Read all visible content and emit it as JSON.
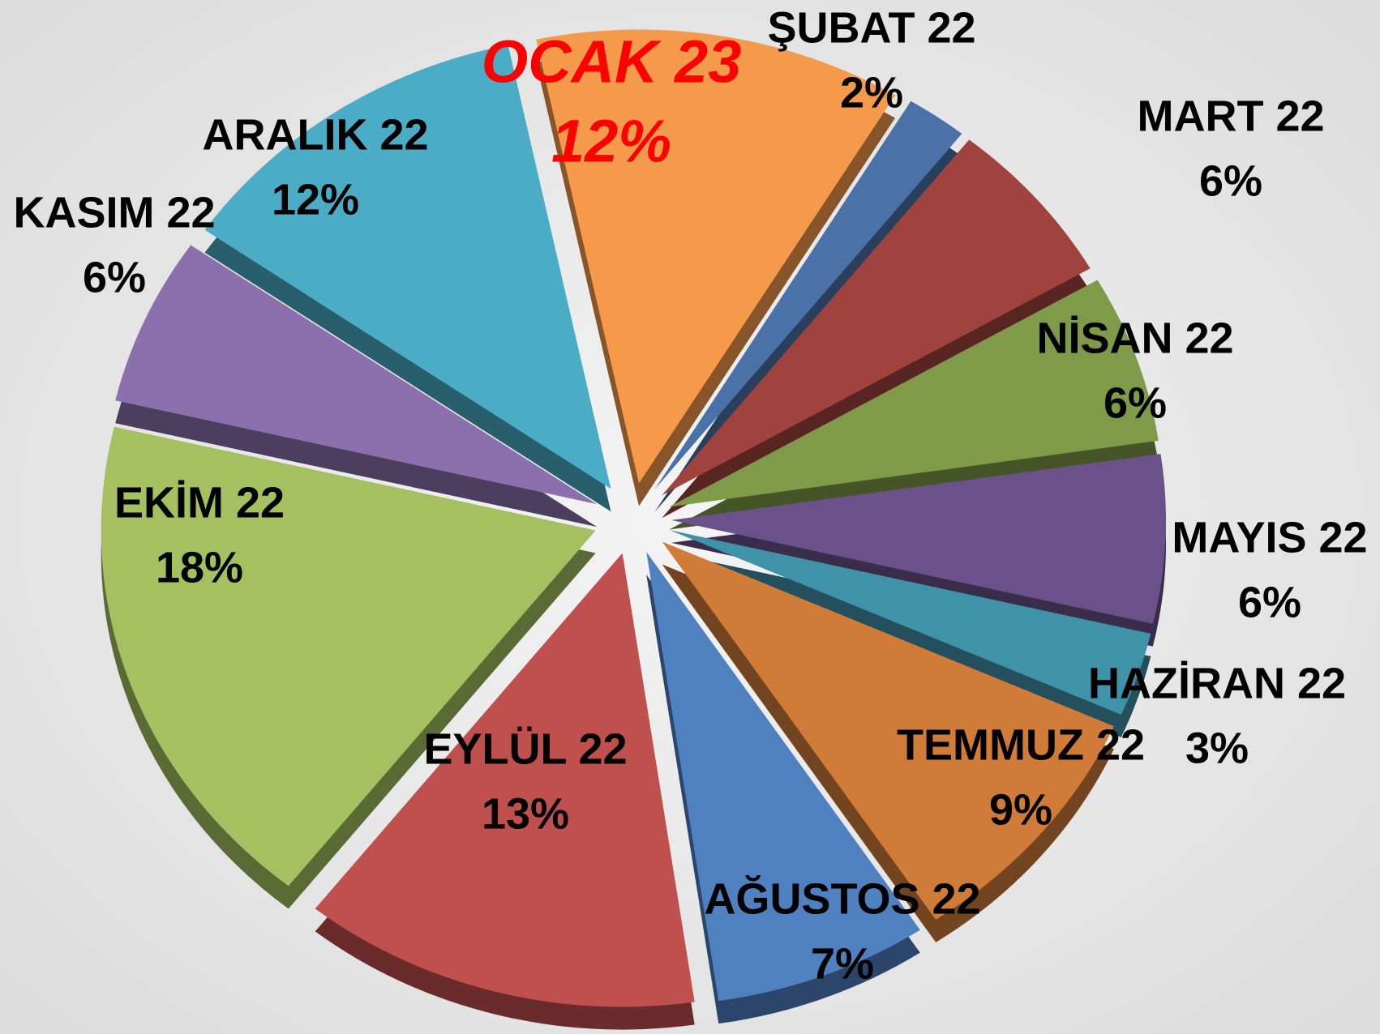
{
  "chart_data": {
    "type": "pie",
    "categories": [
      "OCAK 23",
      "ŞUBAT 22",
      "MART 22",
      "NİSAN 22",
      "MAYIS 22",
      "HAZİRAN 22",
      "TEMMUZ 22",
      "AĞUSTOS 22",
      "EYLÜL 22",
      "EKİM 22",
      "KASIM 22",
      "ARALIK 22"
    ],
    "values": [
      12,
      2,
      6,
      6,
      6,
      3,
      9,
      7,
      13,
      18,
      6,
      12
    ],
    "value_labels": [
      "12%",
      "2%",
      "6%",
      "6%",
      "6%",
      "3%",
      "9%",
      "7%",
      "13%",
      "18%",
      "6%",
      "12%"
    ],
    "colors": [
      "#f59a4a",
      "#4a72a8",
      "#a0433f",
      "#7f9a48",
      "#6a5189",
      "#3f92a8",
      "#d07c38",
      "#4f80c0",
      "#c0504d",
      "#a4c060",
      "#8b70ad",
      "#4bacc6"
    ],
    "label_colors": [
      "#ff0000",
      "#000000",
      "#000000",
      "#000000",
      "#000000",
      "#000000",
      "#000000",
      "#000000",
      "#000000",
      "#000000",
      "#000000",
      "#000000"
    ]
  }
}
